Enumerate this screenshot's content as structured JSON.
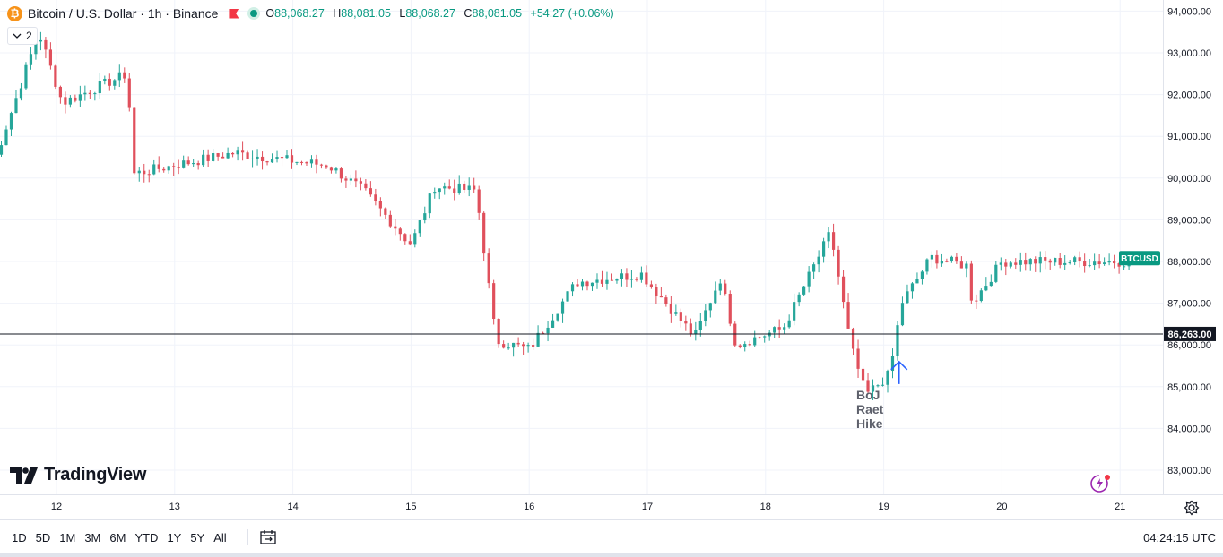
{
  "legend": {
    "coin_letter": "₿",
    "symbol_title": "Bitcoin / U.S. Dollar · 1h · Binance",
    "open_key": "O",
    "open": "88,068.27",
    "high_key": "H",
    "high": "88,081.05",
    "low_key": "L",
    "low": "88,068.27",
    "close_key": "C",
    "close": "88,081.05",
    "change": "+54.27 (+0.06%)"
  },
  "indicator_count": "2",
  "brand": "TradingView",
  "annotation": {
    "lines": [
      "BoJ",
      "Raet",
      "Hike"
    ]
  },
  "timeframes": [
    "1D",
    "5D",
    "1M",
    "3M",
    "6M",
    "YTD",
    "1Y",
    "5Y",
    "All"
  ],
  "clock": "04:24:15 UTC",
  "colors": {
    "up": "#26a69a",
    "down": "#e0505c",
    "grid": "#f0f3fa",
    "line": "#131722",
    "badge": "#089981",
    "arrow": "#2962ff"
  },
  "chart_data": {
    "type": "candlestick",
    "symbol_label": "BTCUSD",
    "ylim": [
      82500,
      94200
    ],
    "y_ticks": [
      "83,000.00",
      "84,000.00",
      "85,000.00",
      "86,000.00",
      "87,000.00",
      "88,000.00",
      "89,000.00",
      "90,000.00",
      "91,000.00",
      "92,000.00",
      "93,000.00",
      "94,000.00"
    ],
    "x_ticks": [
      "12",
      "13",
      "14",
      "15",
      "16",
      "17",
      "18",
      "19",
      "20",
      "21"
    ],
    "hline": {
      "value": 86263,
      "label": "86,263.00"
    },
    "last_price_label": "BTCUSD",
    "last_price": 88081.05,
    "waypoints_day_close": [
      [
        11.45,
        90200
      ],
      [
        11.85,
        93500
      ],
      [
        12.05,
        91800
      ],
      [
        12.6,
        92500
      ],
      [
        12.65,
        90100
      ],
      [
        13.5,
        90600
      ],
      [
        14.3,
        90300
      ],
      [
        14.6,
        89700
      ],
      [
        15.0,
        88400
      ],
      [
        15.2,
        89800
      ],
      [
        15.55,
        89700
      ],
      [
        15.72,
        86100
      ],
      [
        16.0,
        85900
      ],
      [
        16.4,
        87500
      ],
      [
        16.95,
        87700
      ],
      [
        17.4,
        86200
      ],
      [
        17.6,
        87500
      ],
      [
        17.62,
        87600
      ],
      [
        17.75,
        86000
      ],
      [
        18.15,
        86400
      ],
      [
        18.55,
        88700
      ],
      [
        18.72,
        86000
      ],
      [
        18.85,
        84800
      ],
      [
        19.05,
        85300
      ],
      [
        19.15,
        87000
      ],
      [
        19.4,
        88100
      ],
      [
        19.7,
        87900
      ],
      [
        19.75,
        87000
      ],
      [
        20.0,
        88000
      ],
      [
        21.1,
        88000
      ]
    ],
    "annotation_time_day": 19.13,
    "annotation_price": 85600
  }
}
